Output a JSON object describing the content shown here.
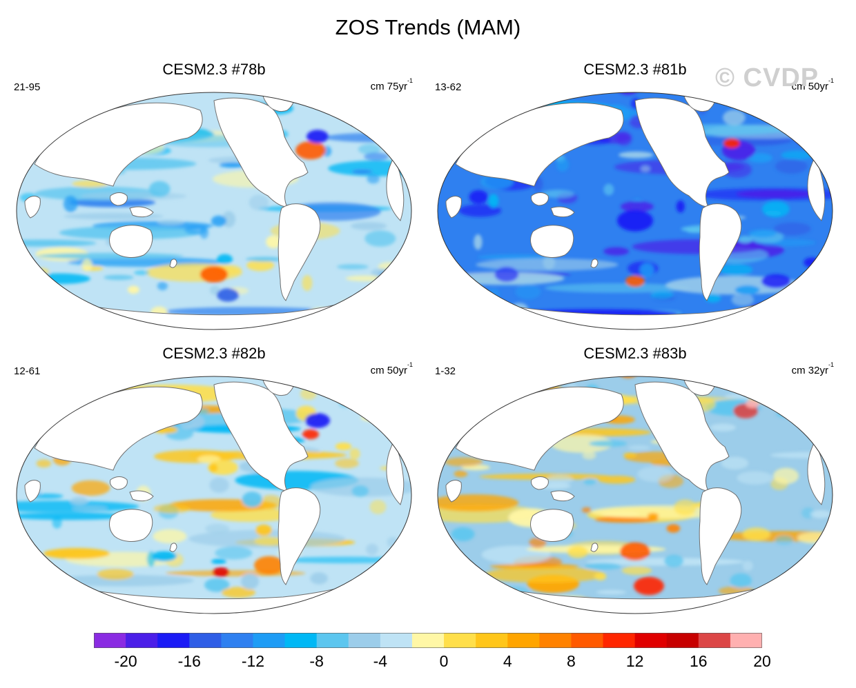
{
  "figure": {
    "title": "ZOS Trends (MAM)",
    "watermark": "© CVDP"
  },
  "panels": [
    {
      "title": "CESM2.3 #78b",
      "range": "21-95",
      "units_main": "cm 75yr",
      "units_sup": "-1",
      "pattern": "mixed_cool"
    },
    {
      "title": "CESM2.3 #81b",
      "range": "13-62",
      "units_main": "cm 50yr",
      "units_sup": "-1",
      "pattern": "strong_negative"
    },
    {
      "title": "CESM2.3 #82b",
      "range": "12-61",
      "units_main": "cm 50yr",
      "units_sup": "-1",
      "pattern": "mixed_warm"
    },
    {
      "title": "CESM2.3 #83b",
      "range": "1-32",
      "units_main": "cm 32yr",
      "units_sup": "-1",
      "pattern": "positive_pacific"
    }
  ],
  "colorbar": {
    "colors": [
      "#8a2be2",
      "#4b1fe8",
      "#1b1bf5",
      "#2f5ee6",
      "#2f80f0",
      "#1e9cf5",
      "#00b8f5",
      "#5cc6ef",
      "#9ccdea",
      "#bfe3f5",
      "#fff7a6",
      "#ffdf4a",
      "#ffc61a",
      "#ffa500",
      "#ff8200",
      "#ff5a00",
      "#ff2600",
      "#e00000",
      "#c70000",
      "#dc4646",
      "#ffb0b0"
    ],
    "tick_labels": [
      "-20",
      "-16",
      "-12",
      "-8",
      "-4",
      "0",
      "4",
      "8",
      "12",
      "16",
      "20"
    ]
  }
}
